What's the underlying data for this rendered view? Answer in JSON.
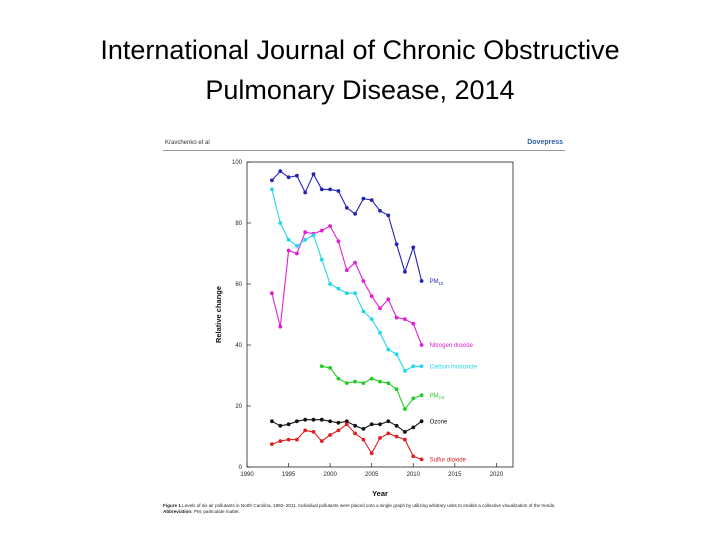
{
  "slide": {
    "title_line1": "International Journal of Chronic Obstructive",
    "title_line2": "Pulmonary Disease, 2014"
  },
  "figure": {
    "header_left": "Kravchenko et al",
    "header_right": "Dovepress",
    "caption_label": "Figure 1",
    "caption_text": "Levels of six air pollutants in North Carolina, 1992–2011. Individual pollutants were placed onto a single graph by utilizing arbitrary units to enable a collective visualization of the trends.",
    "abbrev_label": "Abbreviation:",
    "abbrev_text": "PM, particulate matter."
  },
  "chart_data": {
    "type": "line",
    "xlabel": "Year",
    "ylabel": "Relative change",
    "xlim": [
      1990,
      2022
    ],
    "ylim": [
      0,
      100
    ],
    "xticks": [
      1990,
      1995,
      2000,
      2005,
      2010,
      2015,
      2020
    ],
    "yticks": [
      0,
      20,
      40,
      60,
      80,
      100
    ],
    "series": [
      {
        "name": "PM",
        "name_sub": "10",
        "color": "#2424b8",
        "x": [
          1993,
          1994,
          1995,
          1996,
          1997,
          1998,
          1999,
          2000,
          2001,
          2002,
          2003,
          2004,
          2005,
          2006,
          2007,
          2008,
          2009,
          2010,
          2011
        ],
        "values": [
          94,
          97,
          95,
          95.5,
          90,
          96,
          91,
          91,
          90.5,
          85,
          83,
          88,
          87.5,
          84,
          82.5,
          73,
          64,
          72,
          61
        ]
      },
      {
        "name": "Nitrogen dioxide",
        "color": "#e020d8",
        "x": [
          1993,
          1994,
          1995,
          1996,
          1997,
          1998,
          1999,
          2000,
          2001,
          2002,
          2003,
          2004,
          2005,
          2006,
          2007,
          2008,
          2009,
          2010,
          2011
        ],
        "values": [
          57,
          46,
          71,
          70,
          77,
          76.5,
          77.5,
          79,
          74,
          64.5,
          67,
          61,
          56,
          52,
          55,
          49,
          48.5,
          47,
          40
        ]
      },
      {
        "name": "Carbon monoxide",
        "color": "#20d8e8",
        "x": [
          1993,
          1994,
          1995,
          1996,
          1997,
          1998,
          1999,
          2000,
          2001,
          2002,
          2003,
          2004,
          2005,
          2006,
          2007,
          2008,
          2009,
          2010,
          2011
        ],
        "values": [
          91,
          80,
          74.5,
          72.5,
          74.5,
          76,
          68,
          60,
          58.5,
          57,
          57,
          51,
          48.5,
          44,
          38.5,
          37,
          31.5,
          33,
          33
        ]
      },
      {
        "name": "PM",
        "name_sub": "2.5",
        "color": "#22cc22",
        "x": [
          1999,
          2000,
          2001,
          2002,
          2003,
          2004,
          2005,
          2006,
          2007,
          2008,
          2009,
          2010,
          2011
        ],
        "values": [
          33,
          32.5,
          29,
          27.5,
          28,
          27.5,
          29,
          28,
          27.5,
          25.5,
          19,
          22.5,
          23.5
        ]
      },
      {
        "name": "Ozone",
        "color": "#111111",
        "x": [
          1993,
          1994,
          1995,
          1996,
          1997,
          1998,
          1999,
          2000,
          2001,
          2002,
          2003,
          2004,
          2005,
          2006,
          2007,
          2008,
          2009,
          2010,
          2011
        ],
        "values": [
          15,
          13.5,
          14,
          15,
          15.5,
          15.5,
          15.5,
          15,
          14.5,
          15,
          13.5,
          12.5,
          14,
          14,
          15,
          13.5,
          11.5,
          13,
          15
        ]
      },
      {
        "name": "Sulfur dioxide",
        "color": "#dd2020",
        "x": [
          1993,
          1994,
          1995,
          1996,
          1997,
          1998,
          1999,
          2000,
          2001,
          2002,
          2003,
          2004,
          2005,
          2006,
          2007,
          2008,
          2009,
          2010,
          2011
        ],
        "values": [
          7.5,
          8.5,
          9,
          9,
          12,
          11.5,
          8.5,
          10.5,
          12,
          14,
          11,
          9,
          4.5,
          9.5,
          11,
          10,
          9,
          3.5,
          2.5
        ]
      }
    ]
  }
}
